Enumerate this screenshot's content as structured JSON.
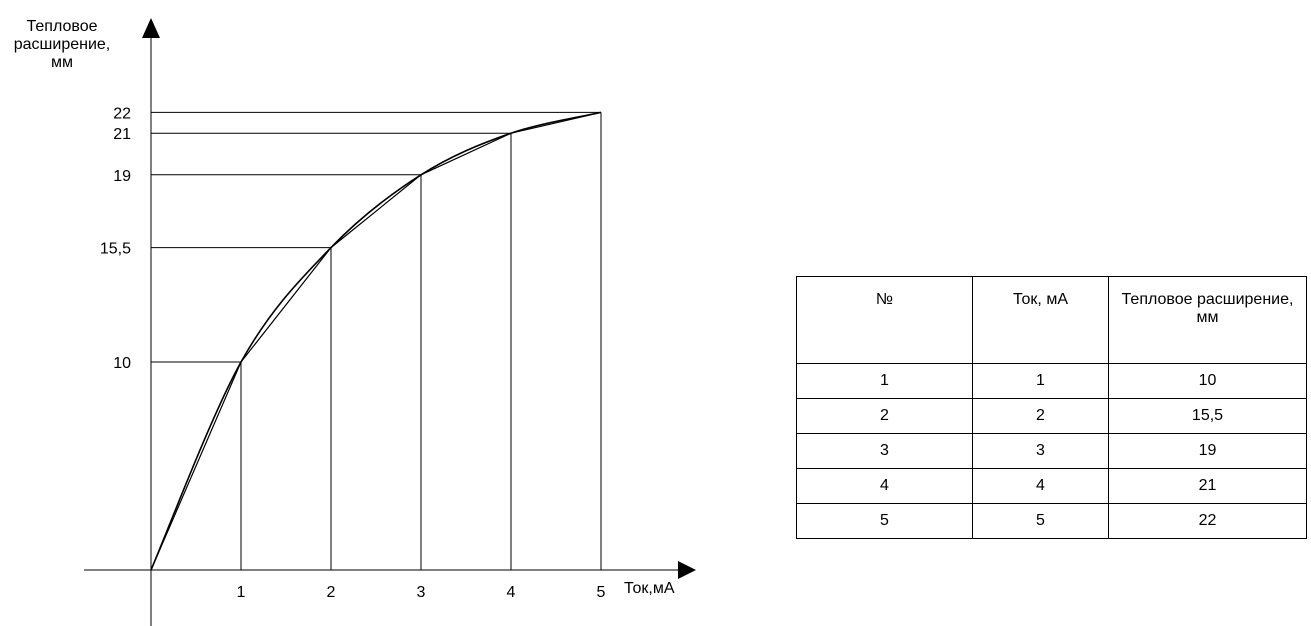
{
  "chart_data": {
    "type": "line",
    "ylabel": "Тепловое\nрасширение,\nмм",
    "xlabel": "Ток,мА",
    "x": [
      0,
      1,
      2,
      3,
      4,
      5
    ],
    "values": [
      0,
      10,
      15.5,
      19,
      21,
      22
    ],
    "x_ticks": [
      "1",
      "2",
      "3",
      "4",
      "5"
    ],
    "y_ticks": [
      "10",
      "15,5",
      "19",
      "21",
      "22"
    ],
    "y_tick_values": [
      10,
      15.5,
      19,
      21,
      22
    ],
    "xlim": [
      0,
      5
    ],
    "ylim": [
      0,
      22
    ],
    "grid": false
  },
  "table": {
    "headers": [
      "№",
      "Ток, мА",
      "Тепловое расширение, мм"
    ],
    "rows": [
      [
        "1",
        "1",
        "10"
      ],
      [
        "2",
        "2",
        "15,5"
      ],
      [
        "3",
        "3",
        "19"
      ],
      [
        "4",
        "4",
        "21"
      ],
      [
        "5",
        "5",
        "22"
      ]
    ]
  }
}
